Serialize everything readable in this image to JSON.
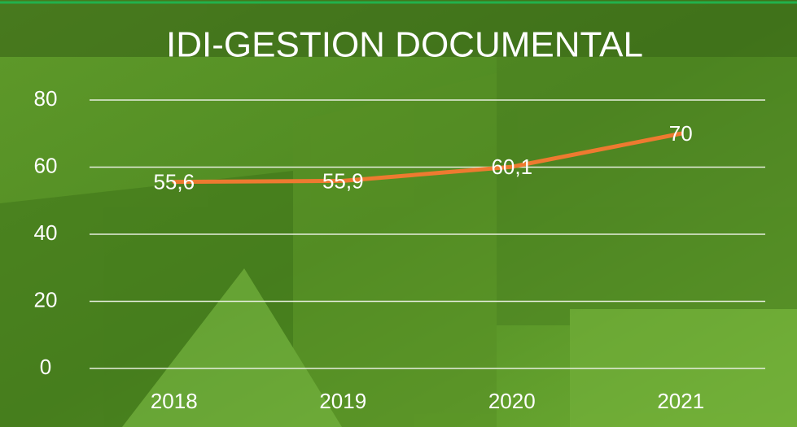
{
  "chart_data": {
    "type": "line",
    "title": "IDI-GESTION DOCUMENTAL",
    "categories": [
      "2018",
      "2019",
      "2020",
      "2021"
    ],
    "series": [
      {
        "name": null,
        "color": "#ee7a30",
        "values": [
          55.6,
          55.9,
          60.1,
          70
        ],
        "value_labels": [
          "55,6",
          "55,9",
          "60,1",
          "70"
        ]
      }
    ],
    "ylim": [
      0,
      80
    ],
    "yticks": [
      0,
      20,
      40,
      60,
      80
    ],
    "grid": true
  }
}
